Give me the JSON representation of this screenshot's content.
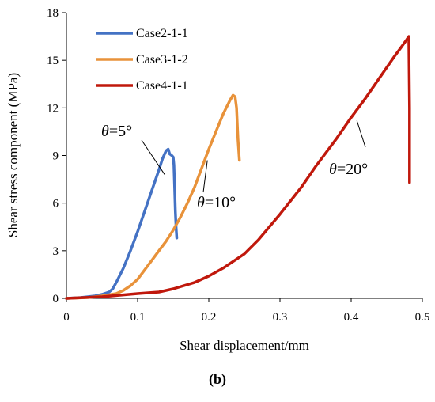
{
  "chart_data": {
    "type": "line",
    "xlabel": "Shear displacement/mm",
    "ylabel": "Shear stress component (MPa)",
    "xlim": [
      0,
      0.5
    ],
    "ylim": [
      0,
      18
    ],
    "x_ticks": [
      "0",
      "0.1",
      "0.2",
      "0.3",
      "0.4",
      "0.5"
    ],
    "y_ticks": [
      "0",
      "3",
      "6",
      "9",
      "12",
      "15",
      "18"
    ],
    "grid": false,
    "legend_position": "top-left",
    "series": [
      {
        "name": "Case2-1-1",
        "color": "#4472C4",
        "x": [
          0,
          0.02,
          0.04,
          0.05,
          0.06,
          0.065,
          0.07,
          0.08,
          0.09,
          0.1,
          0.11,
          0.12,
          0.13,
          0.135,
          0.14,
          0.143,
          0.145,
          0.148,
          0.15,
          0.151,
          0.152,
          0.153,
          0.154,
          0.155
        ],
        "values": [
          0,
          0.05,
          0.15,
          0.25,
          0.4,
          0.6,
          1.0,
          1.9,
          3.0,
          4.2,
          5.5,
          6.8,
          8.1,
          8.8,
          9.3,
          9.4,
          9.1,
          9.0,
          8.9,
          8.4,
          7.0,
          5.5,
          4.5,
          3.8
        ]
      },
      {
        "name": "Case3-1-2",
        "color": "#E8923A",
        "x": [
          0,
          0.03,
          0.05,
          0.07,
          0.08,
          0.09,
          0.1,
          0.11,
          0.12,
          0.13,
          0.14,
          0.15,
          0.16,
          0.17,
          0.18,
          0.19,
          0.2,
          0.21,
          0.22,
          0.23,
          0.234,
          0.237,
          0.239,
          0.241,
          0.243
        ],
        "values": [
          0,
          0.05,
          0.15,
          0.3,
          0.5,
          0.8,
          1.2,
          1.8,
          2.4,
          3.0,
          3.6,
          4.3,
          5.1,
          6.0,
          7.0,
          8.2,
          9.4,
          10.5,
          11.6,
          12.5,
          12.8,
          12.7,
          12.0,
          10.0,
          8.7
        ]
      },
      {
        "name": "Case4-1-1",
        "color": "#C0180C",
        "x": [
          0,
          0.05,
          0.1,
          0.13,
          0.15,
          0.18,
          0.2,
          0.22,
          0.25,
          0.27,
          0.3,
          0.33,
          0.35,
          0.38,
          0.4,
          0.42,
          0.44,
          0.46,
          0.47,
          0.478,
          0.481,
          0.482,
          0.482
        ],
        "values": [
          0,
          0.1,
          0.3,
          0.4,
          0.6,
          1.0,
          1.4,
          1.9,
          2.8,
          3.7,
          5.3,
          7.0,
          8.3,
          10.1,
          11.4,
          12.6,
          13.9,
          15.2,
          15.8,
          16.3,
          16.5,
          12.0,
          7.3
        ]
      }
    ],
    "annotations": [
      {
        "text": "θ=5°",
        "target_x": 0.138,
        "target_y": 7.8
      },
      {
        "text": "θ=10°",
        "target_x": 0.198,
        "target_y": 8.7
      },
      {
        "text": "θ=20°",
        "target_x": 0.408,
        "target_y": 11.2
      }
    ]
  },
  "caption": "(b)"
}
